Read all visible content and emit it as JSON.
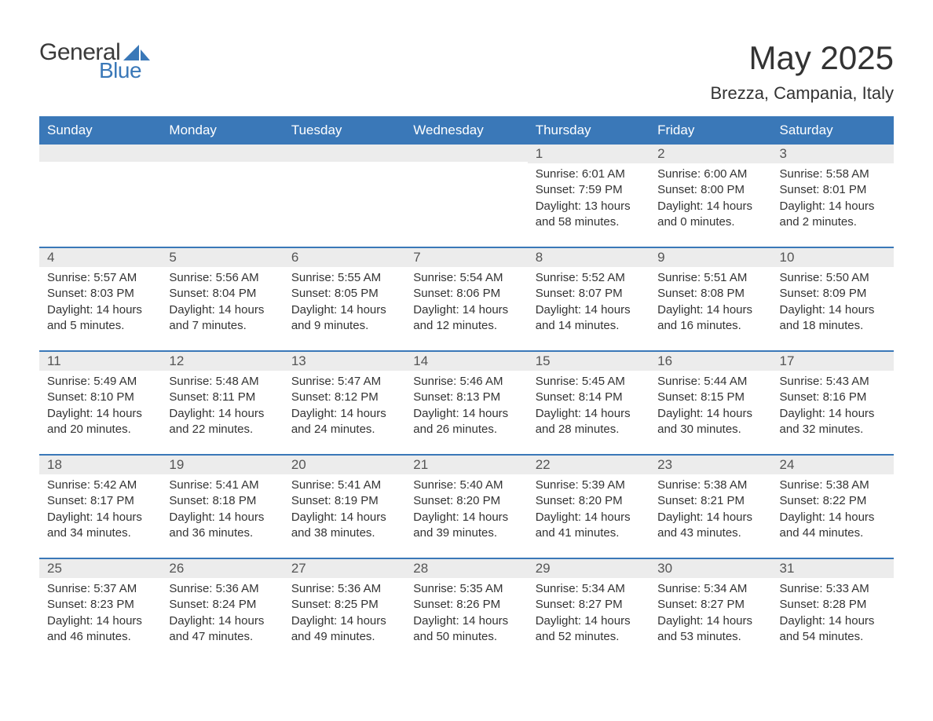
{
  "brand": {
    "word1": "General",
    "word2": "Blue",
    "accent_color": "#3a78b8",
    "text_color": "#3a3a3a"
  },
  "header": {
    "title": "May 2025",
    "location": "Brezza, Campania, Italy"
  },
  "style": {
    "header_bg": "#3a78b8",
    "header_text": "#ffffff",
    "daynum_bg": "#ececec",
    "row_border": "#3a78b8",
    "body_text": "#333333",
    "page_bg": "#ffffff",
    "title_fontsize": 42,
    "subtitle_fontsize": 22,
    "th_fontsize": 17,
    "detail_fontsize": 15
  },
  "calendar": {
    "type": "table",
    "columns": [
      "Sunday",
      "Monday",
      "Tuesday",
      "Wednesday",
      "Thursday",
      "Friday",
      "Saturday"
    ],
    "weeks": [
      [
        null,
        null,
        null,
        null,
        {
          "day": "1",
          "sunrise": "Sunrise: 6:01 AM",
          "sunset": "Sunset: 7:59 PM",
          "daylight1": "Daylight: 13 hours",
          "daylight2": "and 58 minutes."
        },
        {
          "day": "2",
          "sunrise": "Sunrise: 6:00 AM",
          "sunset": "Sunset: 8:00 PM",
          "daylight1": "Daylight: 14 hours",
          "daylight2": "and 0 minutes."
        },
        {
          "day": "3",
          "sunrise": "Sunrise: 5:58 AM",
          "sunset": "Sunset: 8:01 PM",
          "daylight1": "Daylight: 14 hours",
          "daylight2": "and 2 minutes."
        }
      ],
      [
        {
          "day": "4",
          "sunrise": "Sunrise: 5:57 AM",
          "sunset": "Sunset: 8:03 PM",
          "daylight1": "Daylight: 14 hours",
          "daylight2": "and 5 minutes."
        },
        {
          "day": "5",
          "sunrise": "Sunrise: 5:56 AM",
          "sunset": "Sunset: 8:04 PM",
          "daylight1": "Daylight: 14 hours",
          "daylight2": "and 7 minutes."
        },
        {
          "day": "6",
          "sunrise": "Sunrise: 5:55 AM",
          "sunset": "Sunset: 8:05 PM",
          "daylight1": "Daylight: 14 hours",
          "daylight2": "and 9 minutes."
        },
        {
          "day": "7",
          "sunrise": "Sunrise: 5:54 AM",
          "sunset": "Sunset: 8:06 PM",
          "daylight1": "Daylight: 14 hours",
          "daylight2": "and 12 minutes."
        },
        {
          "day": "8",
          "sunrise": "Sunrise: 5:52 AM",
          "sunset": "Sunset: 8:07 PM",
          "daylight1": "Daylight: 14 hours",
          "daylight2": "and 14 minutes."
        },
        {
          "day": "9",
          "sunrise": "Sunrise: 5:51 AM",
          "sunset": "Sunset: 8:08 PM",
          "daylight1": "Daylight: 14 hours",
          "daylight2": "and 16 minutes."
        },
        {
          "day": "10",
          "sunrise": "Sunrise: 5:50 AM",
          "sunset": "Sunset: 8:09 PM",
          "daylight1": "Daylight: 14 hours",
          "daylight2": "and 18 minutes."
        }
      ],
      [
        {
          "day": "11",
          "sunrise": "Sunrise: 5:49 AM",
          "sunset": "Sunset: 8:10 PM",
          "daylight1": "Daylight: 14 hours",
          "daylight2": "and 20 minutes."
        },
        {
          "day": "12",
          "sunrise": "Sunrise: 5:48 AM",
          "sunset": "Sunset: 8:11 PM",
          "daylight1": "Daylight: 14 hours",
          "daylight2": "and 22 minutes."
        },
        {
          "day": "13",
          "sunrise": "Sunrise: 5:47 AM",
          "sunset": "Sunset: 8:12 PM",
          "daylight1": "Daylight: 14 hours",
          "daylight2": "and 24 minutes."
        },
        {
          "day": "14",
          "sunrise": "Sunrise: 5:46 AM",
          "sunset": "Sunset: 8:13 PM",
          "daylight1": "Daylight: 14 hours",
          "daylight2": "and 26 minutes."
        },
        {
          "day": "15",
          "sunrise": "Sunrise: 5:45 AM",
          "sunset": "Sunset: 8:14 PM",
          "daylight1": "Daylight: 14 hours",
          "daylight2": "and 28 minutes."
        },
        {
          "day": "16",
          "sunrise": "Sunrise: 5:44 AM",
          "sunset": "Sunset: 8:15 PM",
          "daylight1": "Daylight: 14 hours",
          "daylight2": "and 30 minutes."
        },
        {
          "day": "17",
          "sunrise": "Sunrise: 5:43 AM",
          "sunset": "Sunset: 8:16 PM",
          "daylight1": "Daylight: 14 hours",
          "daylight2": "and 32 minutes."
        }
      ],
      [
        {
          "day": "18",
          "sunrise": "Sunrise: 5:42 AM",
          "sunset": "Sunset: 8:17 PM",
          "daylight1": "Daylight: 14 hours",
          "daylight2": "and 34 minutes."
        },
        {
          "day": "19",
          "sunrise": "Sunrise: 5:41 AM",
          "sunset": "Sunset: 8:18 PM",
          "daylight1": "Daylight: 14 hours",
          "daylight2": "and 36 minutes."
        },
        {
          "day": "20",
          "sunrise": "Sunrise: 5:41 AM",
          "sunset": "Sunset: 8:19 PM",
          "daylight1": "Daylight: 14 hours",
          "daylight2": "and 38 minutes."
        },
        {
          "day": "21",
          "sunrise": "Sunrise: 5:40 AM",
          "sunset": "Sunset: 8:20 PM",
          "daylight1": "Daylight: 14 hours",
          "daylight2": "and 39 minutes."
        },
        {
          "day": "22",
          "sunrise": "Sunrise: 5:39 AM",
          "sunset": "Sunset: 8:20 PM",
          "daylight1": "Daylight: 14 hours",
          "daylight2": "and 41 minutes."
        },
        {
          "day": "23",
          "sunrise": "Sunrise: 5:38 AM",
          "sunset": "Sunset: 8:21 PM",
          "daylight1": "Daylight: 14 hours",
          "daylight2": "and 43 minutes."
        },
        {
          "day": "24",
          "sunrise": "Sunrise: 5:38 AM",
          "sunset": "Sunset: 8:22 PM",
          "daylight1": "Daylight: 14 hours",
          "daylight2": "and 44 minutes."
        }
      ],
      [
        {
          "day": "25",
          "sunrise": "Sunrise: 5:37 AM",
          "sunset": "Sunset: 8:23 PM",
          "daylight1": "Daylight: 14 hours",
          "daylight2": "and 46 minutes."
        },
        {
          "day": "26",
          "sunrise": "Sunrise: 5:36 AM",
          "sunset": "Sunset: 8:24 PM",
          "daylight1": "Daylight: 14 hours",
          "daylight2": "and 47 minutes."
        },
        {
          "day": "27",
          "sunrise": "Sunrise: 5:36 AM",
          "sunset": "Sunset: 8:25 PM",
          "daylight1": "Daylight: 14 hours",
          "daylight2": "and 49 minutes."
        },
        {
          "day": "28",
          "sunrise": "Sunrise: 5:35 AM",
          "sunset": "Sunset: 8:26 PM",
          "daylight1": "Daylight: 14 hours",
          "daylight2": "and 50 minutes."
        },
        {
          "day": "29",
          "sunrise": "Sunrise: 5:34 AM",
          "sunset": "Sunset: 8:27 PM",
          "daylight1": "Daylight: 14 hours",
          "daylight2": "and 52 minutes."
        },
        {
          "day": "30",
          "sunrise": "Sunrise: 5:34 AM",
          "sunset": "Sunset: 8:27 PM",
          "daylight1": "Daylight: 14 hours",
          "daylight2": "and 53 minutes."
        },
        {
          "day": "31",
          "sunrise": "Sunrise: 5:33 AM",
          "sunset": "Sunset: 8:28 PM",
          "daylight1": "Daylight: 14 hours",
          "daylight2": "and 54 minutes."
        }
      ]
    ]
  }
}
